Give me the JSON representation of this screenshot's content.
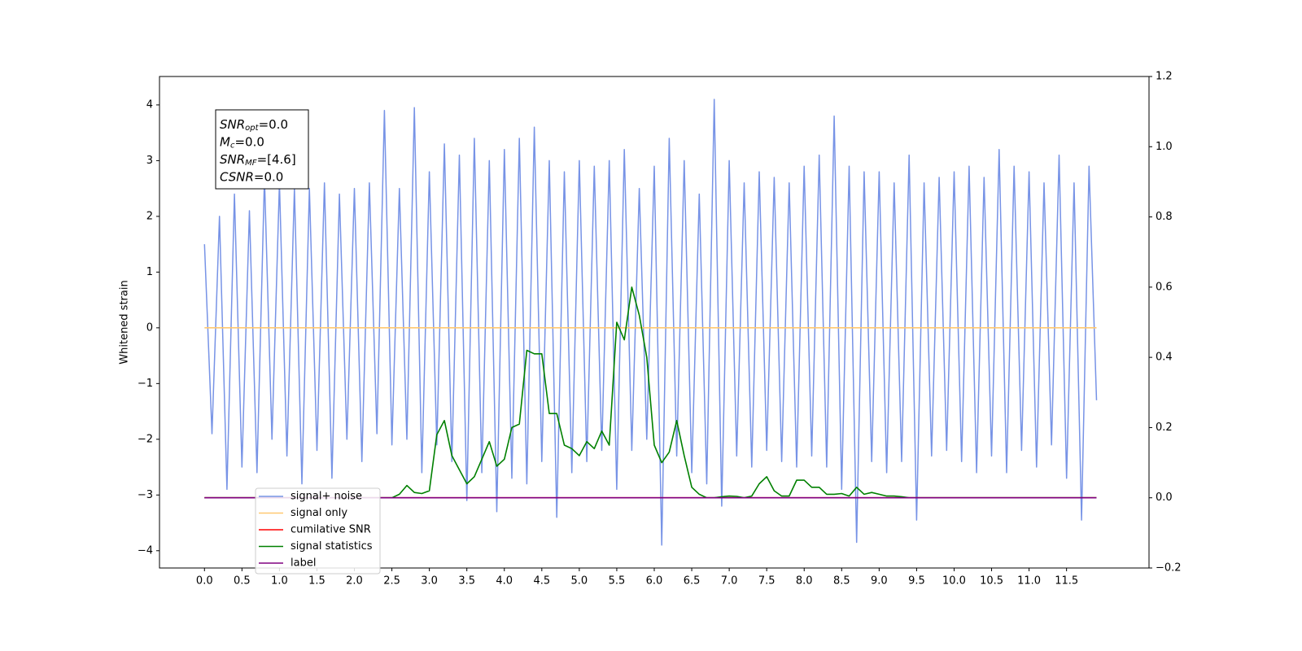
{
  "chart_data": {
    "type": "line",
    "ylabel": "Whitened strain",
    "x": [
      0.0,
      0.1,
      0.2,
      0.3,
      0.4,
      0.5,
      0.6,
      0.7,
      0.8,
      0.9,
      1.0,
      1.1,
      1.2,
      1.3,
      1.4,
      1.5,
      1.6,
      1.7,
      1.8,
      1.9,
      2.0,
      2.1,
      2.2,
      2.3,
      2.4,
      2.5,
      2.6,
      2.7,
      2.8,
      2.9,
      3.0,
      3.1,
      3.2,
      3.3,
      3.4,
      3.5,
      3.6,
      3.7,
      3.8,
      3.9,
      4.0,
      4.1,
      4.2,
      4.3,
      4.4,
      4.5,
      4.6,
      4.7,
      4.8,
      4.9,
      5.0,
      5.1,
      5.2,
      5.3,
      5.4,
      5.5,
      5.6,
      5.7,
      5.8,
      5.9,
      6.0,
      6.1,
      6.2,
      6.3,
      6.4,
      6.5,
      6.6,
      6.7,
      6.8,
      6.9,
      7.0,
      7.1,
      7.2,
      7.3,
      7.4,
      7.5,
      7.6,
      7.7,
      7.8,
      7.9,
      8.0,
      8.1,
      8.2,
      8.3,
      8.4,
      8.5,
      8.6,
      8.7,
      8.8,
      8.9,
      9.0,
      9.1,
      9.2,
      9.3,
      9.4,
      9.5,
      9.6,
      9.7,
      9.8,
      9.9,
      10.0,
      10.1,
      10.2,
      10.3,
      10.4,
      10.5,
      10.6,
      10.7,
      10.8,
      10.9,
      11.0,
      11.1,
      11.2,
      11.3,
      11.4,
      11.5,
      11.6,
      11.7,
      11.8,
      11.9
    ],
    "series": [
      {
        "name": "signal+ noise",
        "color": "#7793e6",
        "values": [
          1.5,
          -1.9,
          2.0,
          -2.9,
          2.4,
          -2.5,
          2.1,
          -2.6,
          2.7,
          -2.0,
          2.6,
          -2.3,
          2.5,
          -2.8,
          2.5,
          -2.2,
          2.6,
          -2.7,
          2.4,
          -2.0,
          2.5,
          -2.4,
          2.6,
          -1.9,
          3.9,
          -2.1,
          2.5,
          -2.0,
          3.95,
          -2.6,
          2.8,
          -2.1,
          3.3,
          -2.4,
          3.1,
          -3.1,
          3.4,
          -2.6,
          3.0,
          -3.3,
          3.2,
          -2.7,
          3.4,
          -2.8,
          3.6,
          -2.4,
          3.0,
          -3.4,
          2.8,
          -2.6,
          3.0,
          -2.4,
          2.9,
          -2.2,
          3.0,
          -2.9,
          3.2,
          -2.2,
          2.5,
          -2.0,
          2.9,
          -3.9,
          3.4,
          -2.3,
          3.0,
          -2.6,
          2.4,
          -2.8,
          4.1,
          -3.2,
          3.0,
          -2.3,
          2.6,
          -2.5,
          2.8,
          -2.2,
          2.7,
          -2.4,
          2.6,
          -2.5,
          2.9,
          -2.3,
          3.1,
          -2.5,
          3.8,
          -2.9,
          2.9,
          -3.85,
          2.8,
          -2.4,
          2.8,
          -2.6,
          2.6,
          -2.4,
          3.1,
          -3.45,
          2.6,
          -2.3,
          2.7,
          -2.2,
          2.8,
          -2.4,
          2.9,
          -2.6,
          2.7,
          -2.3,
          3.2,
          -2.6,
          2.9,
          -2.2,
          2.8,
          -2.5,
          2.6,
          -2.1,
          3.1,
          -2.7,
          2.6,
          -3.45,
          2.9,
          -1.3
        ]
      },
      {
        "name": "signal only",
        "color": "#ffc870",
        "values": [
          0,
          0,
          0,
          0,
          0,
          0,
          0,
          0,
          0,
          0,
          0,
          0,
          0,
          0,
          0,
          0,
          0,
          0,
          0,
          0,
          0,
          0,
          0,
          0,
          0,
          0,
          0,
          0,
          0,
          0,
          0,
          0,
          0,
          0,
          0,
          0,
          0,
          0,
          0,
          0,
          0,
          0,
          0,
          0,
          0,
          0,
          0,
          0,
          0,
          0,
          0,
          0,
          0,
          0,
          0,
          0,
          0,
          0,
          0,
          0,
          0,
          0,
          0,
          0,
          0,
          0,
          0,
          0,
          0,
          0,
          0,
          0,
          0,
          0,
          0,
          0,
          0,
          0,
          0,
          0,
          0,
          0,
          0,
          0,
          0,
          0,
          0,
          0,
          0,
          0,
          0,
          0,
          0,
          0,
          0,
          0,
          0,
          0,
          0,
          0,
          0,
          0,
          0,
          0,
          0,
          0,
          0,
          0,
          0,
          0,
          0,
          0,
          0,
          0,
          0,
          0,
          0,
          0,
          0,
          0
        ]
      },
      {
        "name": "cumilative SNR",
        "color": "#ff0000",
        "axis": "y2",
        "values": [
          0,
          0,
          0,
          0,
          0,
          0,
          0,
          0,
          0,
          0,
          0,
          0,
          0,
          0,
          0,
          0,
          0,
          0,
          0,
          0,
          0,
          0,
          0,
          0,
          0,
          0,
          0,
          0,
          0,
          0,
          0,
          0,
          0,
          0,
          0,
          0,
          0,
          0,
          0,
          0,
          0,
          0,
          0,
          0,
          0,
          0,
          0,
          0,
          0,
          0,
          0,
          0,
          0,
          0,
          0,
          0,
          0,
          0,
          0,
          0,
          0,
          0,
          0,
          0,
          0,
          0,
          0,
          0,
          0,
          0,
          0,
          0,
          0,
          0,
          0,
          0,
          0,
          0,
          0,
          0,
          0,
          0,
          0,
          0,
          0,
          0,
          0,
          0,
          0,
          0,
          0,
          0,
          0,
          0,
          0,
          0,
          0,
          0,
          0,
          0,
          0,
          0,
          0,
          0,
          0,
          0,
          0,
          0,
          0,
          0,
          0,
          0,
          0,
          0,
          0,
          0,
          0,
          0,
          0,
          0
        ]
      },
      {
        "name": "signal statistics",
        "color": "#008000",
        "axis": "y2",
        "values": [
          0,
          0,
          0,
          0,
          0,
          0,
          0,
          0,
          0,
          0,
          0,
          0,
          0,
          0,
          0,
          0,
          0,
          0,
          0,
          0,
          0,
          0,
          0,
          0,
          0,
          0,
          0.01,
          0.035,
          0.015,
          0.012,
          0.02,
          0.18,
          0.22,
          0.12,
          0.08,
          0.04,
          0.06,
          0.11,
          0.16,
          0.09,
          0.11,
          0.2,
          0.21,
          0.42,
          0.41,
          0.41,
          0.24,
          0.24,
          0.15,
          0.14,
          0.12,
          0.16,
          0.14,
          0.19,
          0.15,
          0.5,
          0.45,
          0.6,
          0.52,
          0.4,
          0.15,
          0.1,
          0.13,
          0.22,
          0.12,
          0.03,
          0.01,
          0,
          0,
          0.003,
          0.005,
          0.004,
          0,
          0.005,
          0.04,
          0.06,
          0.02,
          0.005,
          0.005,
          0.05,
          0.05,
          0.03,
          0.03,
          0.01,
          0.01,
          0.012,
          0.005,
          0.03,
          0.01,
          0.015,
          0.01,
          0.005,
          0.005,
          0.003,
          0,
          0,
          0,
          0,
          0,
          0,
          0,
          0,
          0,
          0,
          0,
          0,
          0,
          0,
          0,
          0,
          0,
          0,
          0,
          0,
          0,
          0,
          0,
          0,
          0,
          0
        ]
      },
      {
        "name": "label",
        "color": "#800080",
        "axis": "y2",
        "values": [
          0,
          0,
          0,
          0,
          0,
          0,
          0,
          0,
          0,
          0,
          0,
          0,
          0,
          0,
          0,
          0,
          0,
          0,
          0,
          0,
          0,
          0,
          0,
          0,
          0,
          0,
          0,
          0,
          0,
          0,
          0,
          0,
          0,
          0,
          0,
          0,
          0,
          0,
          0,
          0,
          0,
          0,
          0,
          0,
          0,
          0,
          0,
          0,
          0,
          0,
          0,
          0,
          0,
          0,
          0,
          0,
          0,
          0,
          0,
          0,
          0,
          0,
          0,
          0,
          0,
          0,
          0,
          0,
          0,
          0,
          0,
          0,
          0,
          0,
          0,
          0,
          0,
          0,
          0,
          0,
          0,
          0,
          0,
          0,
          0,
          0,
          0,
          0,
          0,
          0,
          0,
          0,
          0,
          0,
          0,
          0,
          0,
          0,
          0,
          0,
          0,
          0,
          0,
          0,
          0,
          0,
          0,
          0,
          0,
          0,
          0,
          0,
          0,
          0,
          0,
          0,
          0,
          0,
          0,
          0
        ]
      }
    ],
    "xlim": [
      -0.6,
      12.6
    ],
    "xticks": [
      {
        "value": 0,
        "label": "0.0"
      },
      0.5,
      {
        "value": 1,
        "label": "1.0"
      },
      1.5,
      {
        "value": 2,
        "label": "2.0"
      },
      2.5,
      {
        "value": 3,
        "label": "3.0"
      },
      3.5,
      {
        "value": 4,
        "label": "4.0"
      },
      4.5,
      {
        "value": 5,
        "label": "5.0"
      },
      5.5,
      {
        "value": 6,
        "label": "6.0"
      },
      6.5,
      {
        "value": 7,
        "label": "7.0"
      },
      7.5,
      {
        "value": 8,
        "label": "8.0"
      },
      8.5,
      {
        "value": 9,
        "label": "9.0"
      },
      9.5,
      {
        "value": 10,
        "label": "10.0"
      },
      10.5,
      {
        "value": 11,
        "label": "11.0"
      },
      11.5
    ],
    "ylim": [
      -4.31,
      4.51
    ],
    "yticks": [
      {
        "value": -4,
        "label": "−4"
      },
      {
        "value": -3,
        "label": "−3"
      },
      {
        "value": -2,
        "label": "−2"
      },
      {
        "value": -1,
        "label": "−1"
      },
      0,
      1,
      2,
      3,
      4
    ],
    "y2lim": [
      -0.2,
      1.2
    ],
    "y2ticks": [
      {
        "value": -0.2,
        "label": "−0.2"
      },
      {
        "value": 0,
        "label": "0.0"
      },
      0.2,
      0.4,
      0.6,
      0.8,
      {
        "value": 1,
        "label": "1.0"
      },
      {
        "value": 1.2,
        "label": "1.2"
      }
    ],
    "legend": "lower left",
    "annotation": {
      "lines": [
        {
          "main": "SNR",
          "sub": "opt",
          "rest": "=0.0"
        },
        {
          "main": "M",
          "sub": "c",
          "rest": "=0.0"
        },
        {
          "main": "SNR",
          "sub": "MF",
          "rest": "=[4.6]"
        },
        {
          "main": "CSNR",
          "rest": "=0.0"
        }
      ]
    }
  }
}
